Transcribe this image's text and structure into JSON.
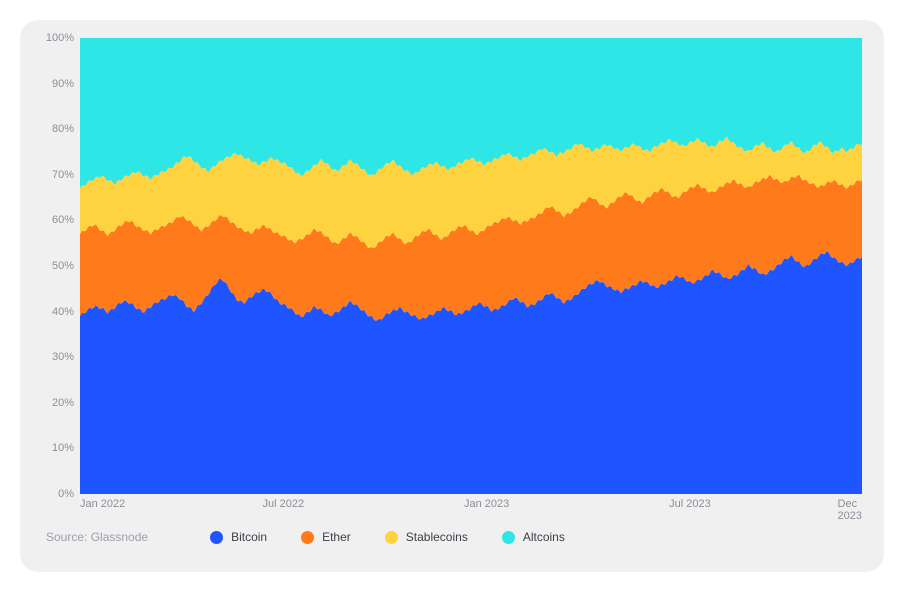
{
  "chart": {
    "type": "stacked-area-100pct",
    "background_color": "#f0f0f0",
    "plot_background": "#ffffff",
    "grid_color": "#d9dde2",
    "axis_label_color": "#8a8f98",
    "axis_label_fontsize": 11,
    "ylim": [
      0,
      100
    ],
    "ytick_step": 10,
    "yticks": [
      "0%",
      "10%",
      "20%",
      "30%",
      "40%",
      "50%",
      "60%",
      "70%",
      "80%",
      "90%",
      "100%"
    ],
    "xticks": [
      {
        "pos": 0.0,
        "label": "Jan 2022"
      },
      {
        "pos": 0.26,
        "label": "Jul 2022"
      },
      {
        "pos": 0.52,
        "label": "Jan 2023"
      },
      {
        "pos": 0.78,
        "label": "Jul 2023"
      },
      {
        "pos": 1.0,
        "label": "Dec 2023"
      }
    ],
    "series": [
      {
        "name": "Bitcoin",
        "color": "#1f55ff"
      },
      {
        "name": "Ether",
        "color": "#ff7a1a"
      },
      {
        "name": "Stablecoins",
        "color": "#ffd23f"
      },
      {
        "name": "Altcoins",
        "color": "#2ee6e6"
      }
    ],
    "cumulative_boundaries": {
      "bitcoin_top": [
        39,
        40,
        41,
        41,
        40,
        41,
        42,
        42,
        41,
        40,
        41,
        42,
        43,
        44,
        43,
        41,
        40,
        42,
        44,
        46,
        47,
        45,
        43,
        42,
        43,
        44,
        45,
        44,
        42,
        41,
        40,
        39,
        40,
        41,
        40,
        39,
        40,
        41,
        42,
        41,
        40,
        39,
        38,
        39,
        40,
        41,
        40,
        39,
        38,
        39,
        40,
        41,
        40,
        39,
        40,
        41,
        42,
        41,
        40,
        41,
        42,
        43,
        42,
        41,
        42,
        43,
        44,
        43,
        42,
        43,
        44,
        45,
        46,
        47,
        46,
        45,
        44,
        45,
        46,
        47,
        46,
        45,
        46,
        47,
        48,
        47,
        46,
        47,
        48,
        49,
        48,
        47,
        48,
        49,
        50,
        49,
        48,
        49,
        50,
        51,
        52,
        51,
        50,
        51,
        52,
        53,
        52,
        51,
        50,
        51,
        52
      ],
      "ether_top": [
        57,
        58,
        59,
        58,
        57,
        58,
        59,
        60,
        59,
        58,
        57,
        58,
        59,
        60,
        61,
        60,
        59,
        58,
        59,
        60,
        61,
        60,
        59,
        58,
        57,
        58,
        59,
        58,
        57,
        56,
        55,
        56,
        57,
        58,
        57,
        56,
        55,
        56,
        57,
        56,
        55,
        54,
        55,
        56,
        57,
        56,
        55,
        56,
        57,
        58,
        57,
        56,
        57,
        58,
        59,
        58,
        57,
        58,
        59,
        60,
        61,
        60,
        59,
        60,
        61,
        62,
        63,
        62,
        61,
        62,
        63,
        64,
        65,
        64,
        63,
        64,
        65,
        66,
        65,
        64,
        65,
        66,
        67,
        66,
        65,
        66,
        67,
        68,
        67,
        66,
        67,
        68,
        69,
        68,
        67,
        68,
        69,
        70,
        69,
        68,
        69,
        70,
        69,
        68,
        67,
        68,
        69,
        68,
        67,
        68,
        69
      ],
      "stablecoins_top": [
        67,
        68,
        69,
        70,
        69,
        68,
        69,
        70,
        71,
        70,
        69,
        70,
        71,
        72,
        73,
        74,
        73,
        72,
        71,
        72,
        73,
        74,
        75,
        74,
        73,
        72,
        73,
        74,
        73,
        72,
        71,
        70,
        71,
        72,
        73,
        72,
        71,
        72,
        73,
        72,
        71,
        70,
        71,
        72,
        73,
        72,
        71,
        70,
        71,
        72,
        73,
        72,
        71,
        72,
        73,
        74,
        73,
        72,
        73,
        74,
        75,
        74,
        73,
        74,
        75,
        76,
        75,
        74,
        75,
        76,
        77,
        76,
        75,
        76,
        77,
        76,
        75,
        76,
        77,
        76,
        75,
        76,
        77,
        78,
        77,
        76,
        77,
        78,
        77,
        76,
        77,
        78,
        77,
        76,
        75,
        76,
        77,
        76,
        75,
        76,
        77,
        76,
        75,
        76,
        77,
        76,
        75,
        76,
        75,
        76,
        77
      ]
    }
  },
  "source_label": "Source: Glassnode",
  "legend_labels": {
    "bitcoin": "Bitcoin",
    "ether": "Ether",
    "stablecoins": "Stablecoins",
    "altcoins": "Altcoins"
  }
}
